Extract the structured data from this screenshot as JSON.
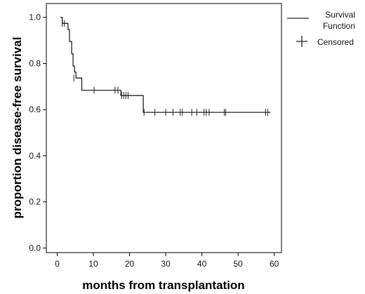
{
  "chart_data": {
    "type": "line",
    "title": "",
    "xlabel": "months from transplantation",
    "ylabel": "proportion disease-free survival",
    "xlim": [
      -3,
      62
    ],
    "ylim": [
      -0.02,
      1.06
    ],
    "xticks": [
      0,
      10,
      20,
      30,
      40,
      50,
      60
    ],
    "xtick_labels": [
      "0",
      "10",
      "20",
      "30",
      "40",
      "50",
      "60"
    ],
    "yticks": [
      0.0,
      0.2,
      0.4,
      0.6,
      0.8,
      1.0
    ],
    "ytick_labels": [
      "0.0",
      "0.2",
      "0.4",
      "0.6",
      "0.8",
      "1.0"
    ],
    "grid": false,
    "legend_position": "top-right outside",
    "series": [
      {
        "name": "Survival Function",
        "kind": "step",
        "points": [
          [
            0.9,
            1.0
          ],
          [
            1.4,
            0.974
          ],
          [
            3.0,
            0.947
          ],
          [
            3.4,
            0.895
          ],
          [
            4.0,
            0.842
          ],
          [
            4.4,
            0.789
          ],
          [
            4.8,
            0.763
          ],
          [
            5.2,
            0.737
          ],
          [
            6.8,
            0.684
          ],
          [
            17.6,
            0.661
          ],
          [
            23.8,
            0.588
          ],
          [
            59.0,
            0.588
          ]
        ]
      },
      {
        "name": "Censored",
        "kind": "censor",
        "points": [
          [
            1.4,
            0.974
          ],
          [
            2.0,
            0.974
          ],
          [
            4.6,
            0.737
          ],
          [
            10.2,
            0.684
          ],
          [
            16.0,
            0.684
          ],
          [
            16.8,
            0.684
          ],
          [
            17.8,
            0.661
          ],
          [
            18.4,
            0.661
          ],
          [
            19.0,
            0.661
          ],
          [
            19.6,
            0.661
          ],
          [
            24.0,
            0.588
          ],
          [
            27.0,
            0.588
          ],
          [
            30.0,
            0.588
          ],
          [
            32.0,
            0.588
          ],
          [
            34.0,
            0.588
          ],
          [
            34.6,
            0.588
          ],
          [
            37.2,
            0.588
          ],
          [
            38.6,
            0.588
          ],
          [
            40.6,
            0.588
          ],
          [
            41.2,
            0.588
          ],
          [
            42.0,
            0.588
          ],
          [
            46.2,
            0.588
          ],
          [
            46.6,
            0.588
          ],
          [
            57.6,
            0.588
          ],
          [
            58.2,
            0.588
          ]
        ]
      }
    ],
    "legend": {
      "line_label_1": "Survival",
      "line_label_2": "Function",
      "censor_label": "Censored"
    }
  }
}
